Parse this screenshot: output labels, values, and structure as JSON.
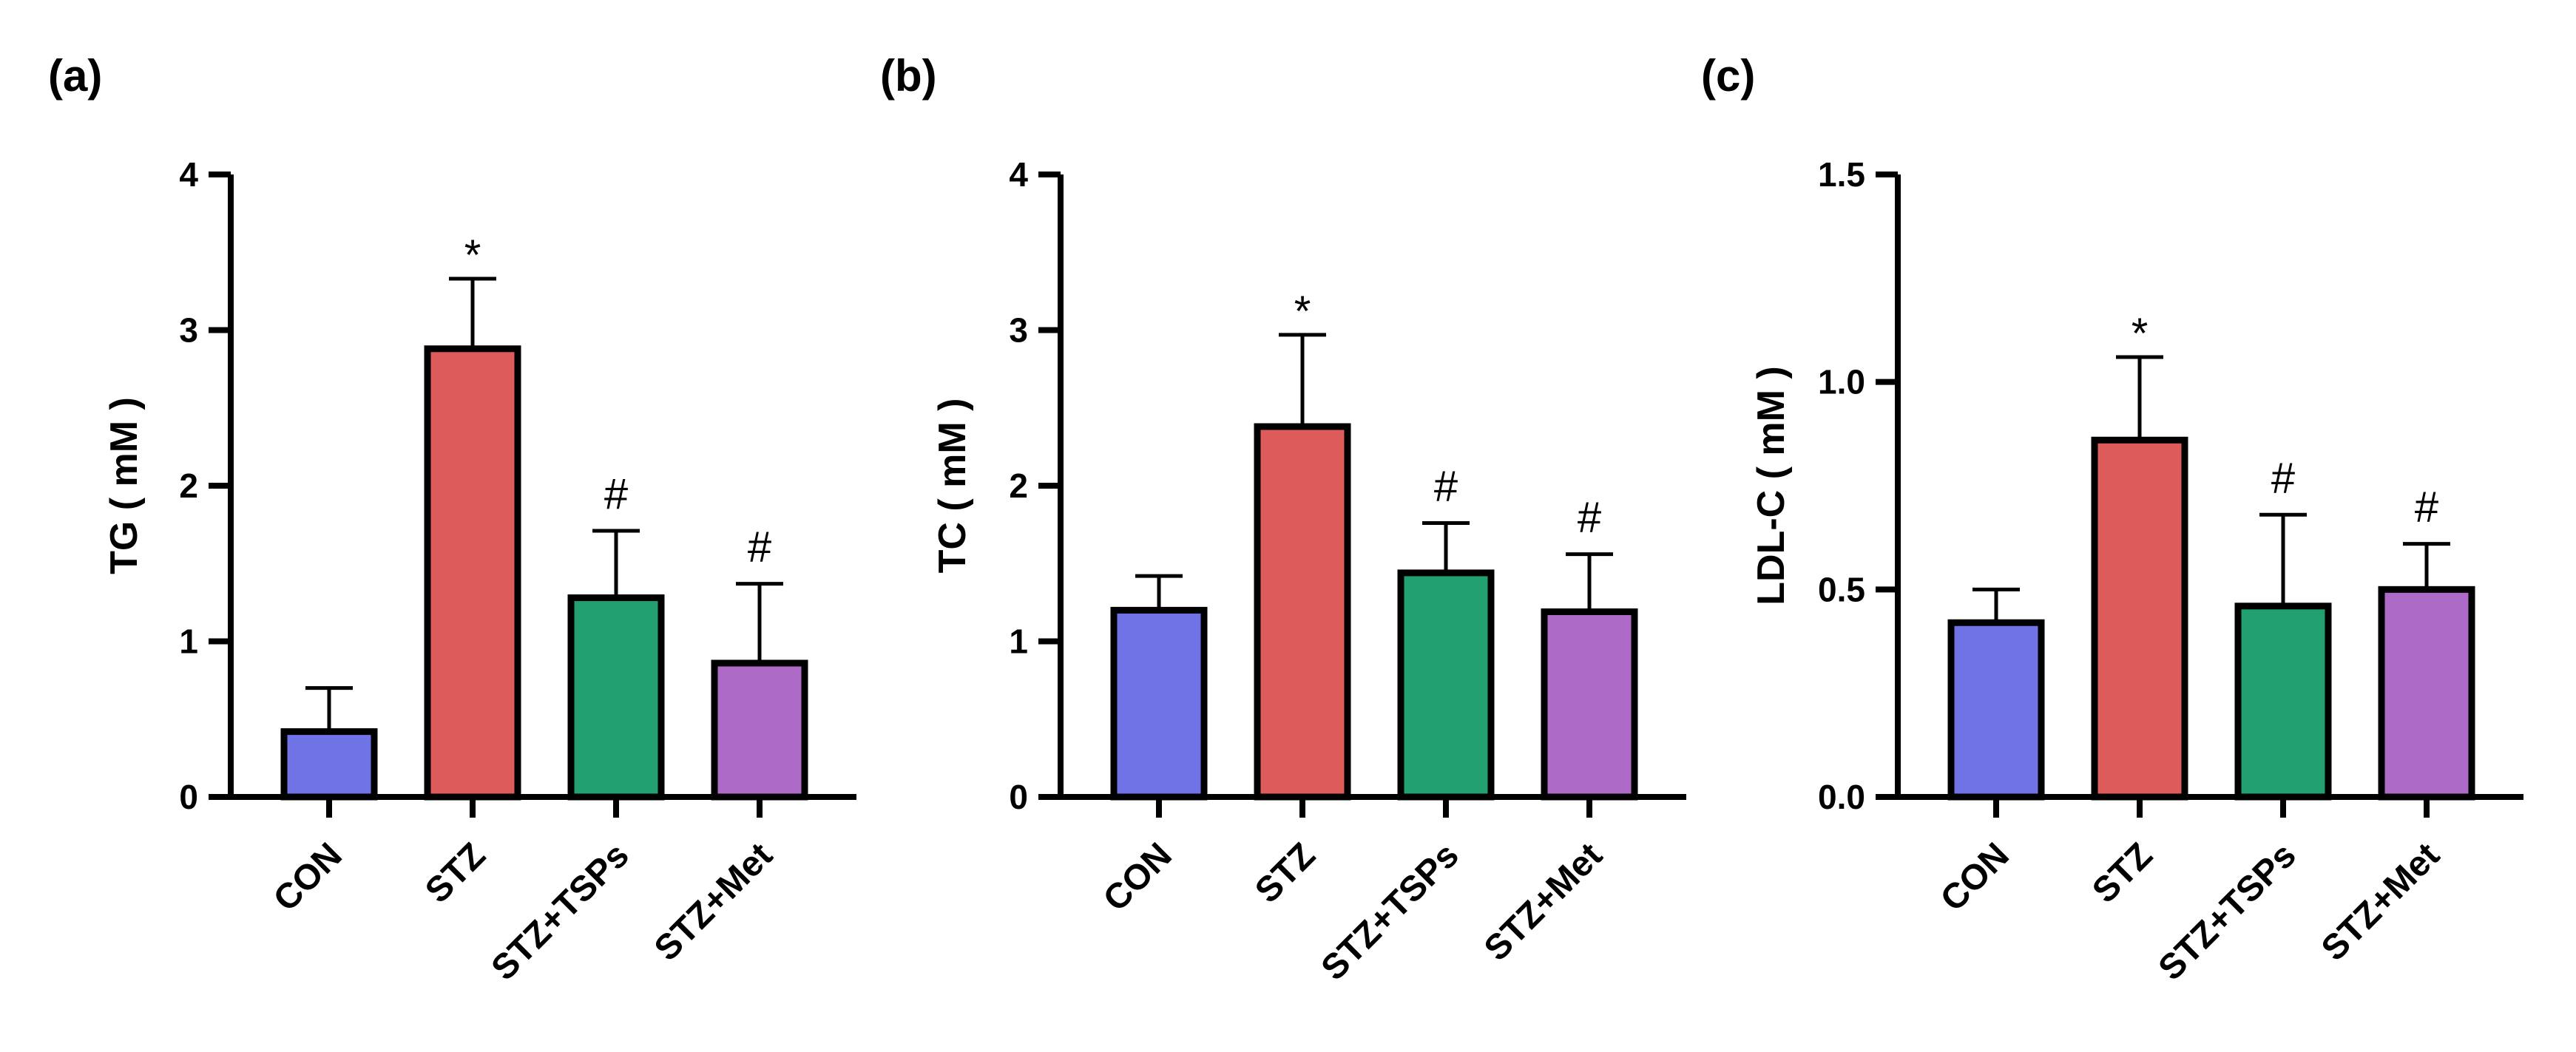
{
  "colors": {
    "CON": "#6f73e6",
    "STZ": "#de5b5b",
    "STZ+TSPs": "#22a06f",
    "STZ+Met": "#ad6bc7"
  },
  "chart_data": [
    {
      "type": "bar",
      "panel": "(a)",
      "ylabel": "TG ( mM )",
      "categories": [
        "CON",
        "STZ",
        "STZ+TSPs",
        "STZ+Met"
      ],
      "values": [
        0.42,
        2.88,
        1.28,
        0.86
      ],
      "errors": [
        0.28,
        0.45,
        0.43,
        0.51
      ],
      "significance": [
        "",
        "*",
        "#",
        "#"
      ],
      "ylim": [
        0,
        4
      ],
      "yticks": [
        0,
        1,
        2,
        3,
        4
      ],
      "ytick_labels": [
        "0",
        "1",
        "2",
        "3",
        "4"
      ]
    },
    {
      "type": "bar",
      "panel": "(b)",
      "ylabel": "TC ( mM )",
      "categories": [
        "CON",
        "STZ",
        "STZ+TSPs",
        "STZ+Met"
      ],
      "values": [
        1.2,
        2.38,
        1.44,
        1.19
      ],
      "errors": [
        0.22,
        0.59,
        0.32,
        0.37
      ],
      "significance": [
        "",
        "*",
        "#",
        "#"
      ],
      "ylim": [
        0,
        4
      ],
      "yticks": [
        0,
        1,
        2,
        3,
        4
      ],
      "ytick_labels": [
        "0",
        "1",
        "2",
        "3",
        "4"
      ]
    },
    {
      "type": "bar",
      "panel": "(c)",
      "ylabel": "LDL-C ( mM )",
      "categories": [
        "CON",
        "STZ",
        "STZ+TSPs",
        "STZ+Met"
      ],
      "values": [
        0.42,
        0.86,
        0.46,
        0.5
      ],
      "errors": [
        0.08,
        0.2,
        0.22,
        0.11
      ],
      "significance": [
        "",
        "*",
        "#",
        "#"
      ],
      "ylim": [
        0,
        1.5
      ],
      "yticks": [
        0,
        0.5,
        1.0,
        1.5
      ],
      "ytick_labels": [
        "0.0",
        "0.5",
        "1.0",
        "1.5"
      ]
    }
  ]
}
